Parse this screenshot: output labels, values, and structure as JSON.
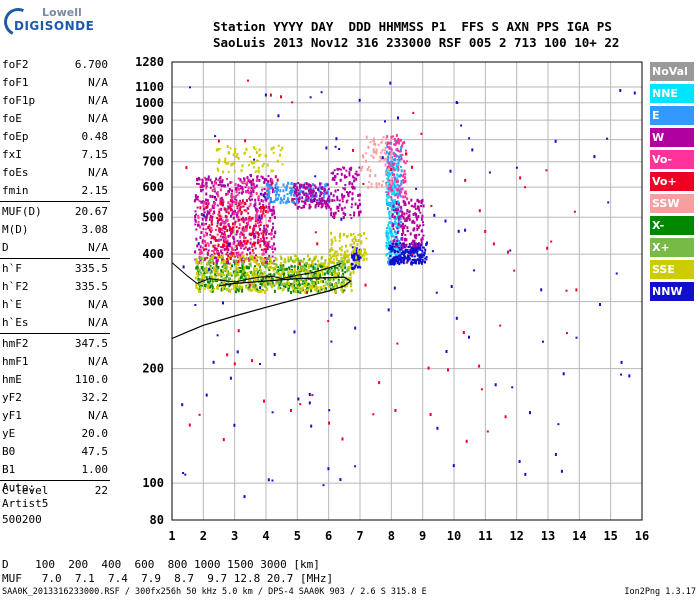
{
  "logo": {
    "line1": "Lowell",
    "line2": "DIGISONDE"
  },
  "header": {
    "line1": "Station YYYY DAY  DDD HHMMSS P1  FFS S AXN PPS IGA PS",
    "line2": "SaoLuis 2013 Nov12 316 233000 RSF 005 2 713 100 10+ 22"
  },
  "scaled": [
    {
      "label": "foF2",
      "value": "6.700"
    },
    {
      "label": "foF1",
      "value": "N/A"
    },
    {
      "label": "foF1p",
      "value": "N/A"
    },
    {
      "label": "foE",
      "value": "N/A"
    },
    {
      "label": "foEp",
      "value": "0.48"
    },
    {
      "label": "fxI",
      "value": "7.15"
    },
    {
      "label": "foEs",
      "value": "N/A"
    },
    {
      "label": "fmin",
      "value": "2.15"
    },
    {
      "label": "MUF(D)",
      "value": "20.67"
    },
    {
      "label": "M(D)",
      "value": "3.08"
    },
    {
      "label": "D",
      "value": "N/A"
    },
    {
      "label": "h`F",
      "value": "335.5"
    },
    {
      "label": "h`F2",
      "value": "335.5"
    },
    {
      "label": "h`E",
      "value": "N/A"
    },
    {
      "label": "h`Es",
      "value": "N/A"
    },
    {
      "label": "hmF2",
      "value": "347.5"
    },
    {
      "label": "hmF1",
      "value": "N/A"
    },
    {
      "label": "hmE",
      "value": "110.0"
    },
    {
      "label": "yF2",
      "value": "32.2"
    },
    {
      "label": "yF1",
      "value": "N/A"
    },
    {
      "label": "yE",
      "value": "20.0"
    },
    {
      "label": "B0",
      "value": "47.5"
    },
    {
      "label": "B1",
      "value": "1.00"
    },
    {
      "label": "C-level",
      "value": "22"
    }
  ],
  "auto": {
    "line1": "Auto:",
    "line2": "Artist5",
    "line3": "500200"
  },
  "legend": [
    {
      "name": "NoVal",
      "color": "#999999"
    },
    {
      "name": "NNE",
      "color": "#00e5ff"
    },
    {
      "name": "E",
      "color": "#3399ff"
    },
    {
      "name": "W",
      "color": "#b000a0"
    },
    {
      "name": "Vo-",
      "color": "#ff3399"
    },
    {
      "name": "Vo+",
      "color": "#ee0022"
    },
    {
      "name": "SSW",
      "color": "#f4a0a0"
    },
    {
      "name": "X-",
      "color": "#008800"
    },
    {
      "name": "X+",
      "color": "#77bb44"
    },
    {
      "name": "SSE",
      "color": "#cccc00"
    },
    {
      "name": "NNW",
      "color": "#1010cc"
    }
  ],
  "dtable": {
    "line1": "D    100  200  400  600  800 1000 1500 3000 [km]",
    "line2": "MUF   7.0  7.1  7.4  7.9  8.7  9.7 12.8 20.7 [MHz]"
  },
  "footer": "SAA0K_2013316233000.RSF / 300fx256h 50 kHz 5.0 km / DPS-4 SAA0K 903 / 2.6 S 315.8 E",
  "version": "Ion2Png 1.3.17",
  "chart_data": {
    "type": "scatter",
    "xlim": [
      1,
      16
    ],
    "ylim": [
      80,
      1280
    ],
    "y_scale": "log",
    "xticks": [
      1,
      2,
      3,
      4,
      5,
      6,
      7,
      8,
      9,
      10,
      11,
      12,
      13,
      14,
      15,
      16
    ],
    "yticks": [
      80,
      100,
      200,
      300,
      400,
      500,
      600,
      700,
      800,
      900,
      1000,
      1100,
      1280
    ],
    "grid": true,
    "profile": [
      [
        1.0,
        240
      ],
      [
        1.5,
        250
      ],
      [
        2.0,
        260
      ],
      [
        3.0,
        275
      ],
      [
        4.0,
        290
      ],
      [
        5.0,
        305
      ],
      [
        6.0,
        320
      ],
      [
        6.5,
        330
      ],
      [
        6.7,
        340
      ],
      [
        6.5,
        348
      ],
      [
        6.0,
        347
      ],
      [
        5.0,
        345
      ],
      [
        4.0,
        340
      ],
      [
        3.0,
        335
      ],
      [
        2.5,
        330
      ]
    ],
    "trace": [
      [
        1.0,
        380
      ],
      [
        1.5,
        350
      ],
      [
        1.8,
        335
      ],
      [
        2.0,
        340
      ],
      [
        2.2,
        345
      ],
      [
        2.5,
        342
      ],
      [
        3.0,
        338
      ],
      [
        3.5,
        345
      ],
      [
        3.8,
        348
      ],
      [
        4.2,
        350
      ],
      [
        4.5,
        345
      ],
      [
        5.0,
        352
      ],
      [
        5.5,
        358
      ],
      [
        6.0,
        368
      ],
      [
        6.4,
        378
      ]
    ],
    "clusters": [
      {
        "name": "W",
        "x": [
          1.7,
          4.3
        ],
        "y": [
          380,
          650
        ],
        "n": 500
      },
      {
        "name": "Vo-",
        "x": [
          1.8,
          4.2
        ],
        "y": [
          390,
          640
        ],
        "n": 220
      },
      {
        "name": "Vo+",
        "x": [
          2.0,
          4.0
        ],
        "y": [
          380,
          560
        ],
        "n": 150
      },
      {
        "name": "X-",
        "x": [
          1.7,
          6.5
        ],
        "y": [
          320,
          380
        ],
        "n": 400
      },
      {
        "name": "SSE",
        "x": [
          1.7,
          6.8
        ],
        "y": [
          320,
          400
        ],
        "n": 500
      },
      {
        "name": "X+",
        "x": [
          1.8,
          6.7
        ],
        "y": [
          330,
          395
        ],
        "n": 150
      },
      {
        "name": "E",
        "x": [
          4.0,
          6.0
        ],
        "y": [
          550,
          620
        ],
        "n": 160
      },
      {
        "name": "W",
        "x": [
          4.8,
          6.0
        ],
        "y": [
          530,
          620
        ],
        "n": 140
      },
      {
        "name": "NNW",
        "x": [
          6.7,
          7.0
        ],
        "y": [
          370,
          420
        ],
        "n": 70
      },
      {
        "name": "E",
        "x": [
          7.8,
          8.3
        ],
        "y": [
          380,
          800
        ],
        "n": 220
      },
      {
        "name": "NNE",
        "x": [
          7.8,
          8.2
        ],
        "y": [
          400,
          700
        ],
        "n": 120
      },
      {
        "name": "NNW",
        "x": [
          7.9,
          9.1
        ],
        "y": [
          380,
          430
        ],
        "n": 200
      },
      {
        "name": "W",
        "x": [
          8.0,
          9.0
        ],
        "y": [
          420,
          560
        ],
        "n": 140
      },
      {
        "name": "Vo-",
        "x": [
          7.8,
          8.5
        ],
        "y": [
          560,
          830
        ],
        "n": 90
      },
      {
        "name": "SSW",
        "x": [
          7.0,
          8.0
        ],
        "y": [
          600,
          820
        ],
        "n": 70
      },
      {
        "name": "W",
        "x": [
          6.0,
          7.0
        ],
        "y": [
          500,
          680
        ],
        "n": 110
      },
      {
        "name": "SSE",
        "x": [
          6.0,
          7.2
        ],
        "y": [
          380,
          460
        ],
        "n": 90
      },
      {
        "name": "SSE",
        "x": [
          2.4,
          4.5
        ],
        "y": [
          660,
          780
        ],
        "n": 70
      },
      {
        "name": "NNW",
        "x": [
          1.2,
          15.8
        ],
        "y": [
          90,
          1200
        ],
        "n": 110
      },
      {
        "name": "Vo+",
        "x": [
          1.2,
          15.0
        ],
        "y": [
          120,
          1200
        ],
        "n": 70
      }
    ]
  }
}
